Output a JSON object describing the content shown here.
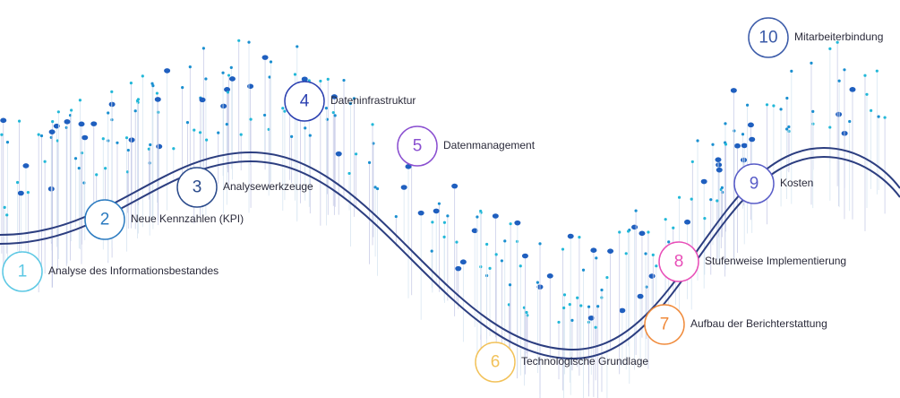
{
  "nodes": [
    {
      "number": "1",
      "label": "Analyse des Informationsbestandes"
    },
    {
      "number": "2",
      "label": "Neue Kennzahlen (KPI)"
    },
    {
      "number": "3",
      "label": "Analysewerkzeuge"
    },
    {
      "number": "4",
      "label": "Dateninfrastruktur"
    },
    {
      "number": "5",
      "label": "Datenmanagement"
    },
    {
      "number": "6",
      "label": "Technologische Grundlage"
    },
    {
      "number": "7",
      "label": "Aufbau der Berichterstattung"
    },
    {
      "number": "8",
      "label": "Stufenweise Implementierung"
    },
    {
      "number": "9",
      "label": "Kosten"
    },
    {
      "number": "10",
      "label": "Mitarbeiterbindung"
    }
  ]
}
